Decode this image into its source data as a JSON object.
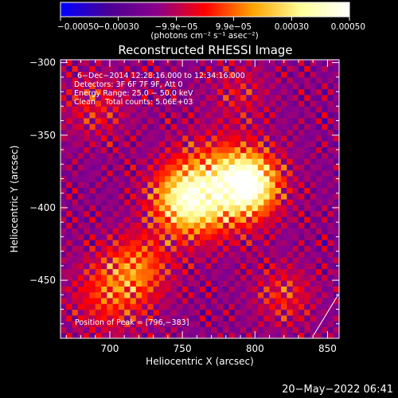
{
  "chart_data": {
    "type": "heatmap",
    "title": "Reconstructed RHESSI Image",
    "xlabel": "Heliocentric X (arcsec)",
    "ylabel": "Heliocentric Y (arcsec)",
    "xlim": [
      666,
      858
    ],
    "ylim": [
      -490,
      -298
    ],
    "x_ticks": [
      700,
      750,
      800,
      850
    ],
    "x_tick_labels": [
      "700",
      "750",
      "800",
      "850"
    ],
    "y_ticks": [
      -300,
      -350,
      -400,
      -450
    ],
    "y_tick_labels": [
      "−300",
      "−350",
      "−400",
      "−450"
    ],
    "colorbar": {
      "min": -0.0005,
      "max": 0.0005,
      "ticks": [
        -0.0005,
        -0.0003,
        -9.9e-05,
        9.9e-05,
        0.0003,
        0.0005
      ],
      "tick_labels": [
        "−0.00050",
        "−0.00030",
        "−9.9e−05",
        "9.9e−05",
        "0.00030",
        "0.00050"
      ],
      "unit_label": "(photons cm⁻² s⁻¹ asec⁻²)",
      "colormap": [
        "#0000ff",
        "#4a0096",
        "#8b008b",
        "#ff0000",
        "#ffa500",
        "#ffff99",
        "#ffffff"
      ]
    },
    "annotations": [
      "6−Dec−2014 12:28:16.000 to 12:34:16.000",
      "Detectors: 3F 6F 7F 9F, Att 0",
      "Energy Range: 25.0 − 50.0 keV",
      "Clean    Total counts: 5.06E+03"
    ],
    "peak_label": "Position of Peak = [796,−383]",
    "peak_position": [
      796,
      -383
    ]
  },
  "footer": {
    "date": "20−May−2022 06:41"
  }
}
